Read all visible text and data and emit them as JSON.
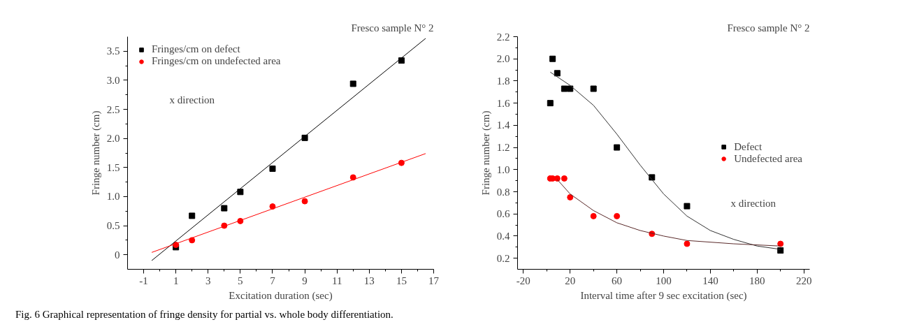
{
  "chart_data": [
    {
      "type": "scatter",
      "title": "Fresco sample N° 2",
      "xlabel": "Excitation duration (sec)",
      "ylabel": "Fringe number (cm)",
      "annotations": [
        "x direction",
        "Fig. 6 Graphical representation of fringe density for partial vs. whole body differentiation."
      ],
      "xlim": [
        -2,
        17
      ],
      "ylim": [
        -0.25,
        3.75
      ],
      "xticks": [
        -1,
        {
          "value": 0,
          "label": null
        },
        1,
        {
          "value": 2,
          "label": null
        },
        3,
        {
          "value": 4,
          "label": null
        },
        5,
        {
          "value": 6,
          "label": null
        },
        7,
        {
          "value": 8,
          "label": null
        },
        9,
        {
          "value": 10,
          "label": null
        },
        11,
        {
          "value": 12,
          "label": null
        },
        13,
        {
          "value": 14,
          "label": null
        },
        15,
        {
          "value": 16,
          "label": null
        },
        17
      ],
      "yticks": [
        0,
        {
          "value": 0.25,
          "label": null
        },
        {
          "value": 0.5,
          "label": "0.5"
        },
        {
          "value": 0.75,
          "label": null
        },
        {
          "value": 1,
          "label": "1.0"
        },
        {
          "value": 1.25,
          "label": null
        },
        1.5,
        {
          "value": 1.75,
          "label": null
        },
        {
          "value": 2,
          "label": "2.0"
        },
        {
          "value": 2.25,
          "label": null
        },
        2.5,
        {
          "value": 2.75,
          "label": null
        },
        {
          "value": 3,
          "label": "3.0"
        },
        {
          "value": 3.25,
          "label": null
        },
        3.5
      ],
      "grid": false,
      "legend": "top left",
      "series": [
        {
          "type": "scatter",
          "name": "Fringes/cm on defect",
          "color": "#000000",
          "marker": "square",
          "x": [
            1,
            2,
            4,
            5,
            7,
            9,
            12,
            15
          ],
          "values": [
            0.13,
            0.67,
            0.8,
            1.08,
            1.48,
            2.01,
            2.94,
            3.34
          ]
        },
        {
          "type": "scatter",
          "name": "Fringes/cm on undefected area",
          "color": "#ff0000",
          "marker": "circle",
          "x": [
            1,
            2,
            4,
            5,
            7,
            9,
            12,
            15
          ],
          "values": [
            0.17,
            0.25,
            0.5,
            0.58,
            0.83,
            0.92,
            1.33,
            1.58
          ]
        },
        {
          "type": "line",
          "color": "#000000",
          "x": [
            -0.5,
            16.5
          ],
          "values": [
            -0.1,
            3.72
          ]
        },
        {
          "type": "line",
          "color": "#ff0000",
          "x": [
            -0.5,
            16.5
          ],
          "values": [
            0.04,
            1.74
          ]
        }
      ]
    },
    {
      "type": "scatter",
      "title": "Fresco sample N° 2",
      "xlabel": "Interval time after 9 sec excitation (sec)",
      "ylabel": "Fringe number (cm)",
      "annotations": [
        "x direction"
      ],
      "xlim": [
        -25,
        225
      ],
      "ylim": [
        0.1,
        2.2
      ],
      "xticks": [
        -20,
        {
          "value": 0,
          "label": null
        },
        20,
        {
          "value": 40,
          "label": null
        },
        60,
        {
          "value": 80,
          "label": null
        },
        100,
        {
          "value": 120,
          "label": null
        },
        140,
        {
          "value": 160,
          "label": null
        },
        180,
        {
          "value": 200,
          "label": null
        },
        220
      ],
      "yticks": [
        {
          "value": 0.2,
          "label": "0.2"
        },
        {
          "value": 0.3,
          "label": null
        },
        {
          "value": 0.4,
          "label": "0.4"
        },
        {
          "value": 0.5,
          "label": null
        },
        {
          "value": 0.6,
          "label": "0.6"
        },
        {
          "value": 0.7,
          "label": null
        },
        {
          "value": 0.8,
          "label": "0.8"
        },
        {
          "value": 0.9,
          "label": null
        },
        {
          "value": 1.0,
          "label": "1.0"
        },
        {
          "value": 1.1,
          "label": null
        },
        {
          "value": 1.2,
          "label": "1.2"
        },
        {
          "value": 1.3,
          "label": null
        },
        {
          "value": 1.4,
          "label": "1.4"
        },
        {
          "value": 1.5,
          "label": null
        },
        {
          "value": 1.6,
          "label": "1.6"
        },
        {
          "value": 1.7,
          "label": null
        },
        {
          "value": 1.8,
          "label": "1.8"
        },
        {
          "value": 1.9,
          "label": null
        },
        {
          "value": 2.0,
          "label": "2.0"
        },
        {
          "value": 2.1,
          "label": null
        },
        {
          "value": 2.2,
          "label": "2.2"
        }
      ],
      "grid": false,
      "legend": "right",
      "series": [
        {
          "type": "scatter",
          "name": "Defect",
          "color": "#000000",
          "marker": "square",
          "x": [
            3,
            5,
            9,
            15,
            20,
            40,
            60,
            90,
            120,
            200
          ],
          "values": [
            1.6,
            2.0,
            1.87,
            1.73,
            1.73,
            1.73,
            1.2,
            0.93,
            0.67,
            0.27
          ]
        },
        {
          "type": "scatter",
          "name": "Undefected area",
          "color": "#ff0000",
          "marker": "circle",
          "x": [
            3,
            5,
            9,
            15,
            20,
            40,
            60,
            90,
            120,
            200
          ],
          "values": [
            0.92,
            0.92,
            0.92,
            0.92,
            0.75,
            0.58,
            0.58,
            0.42,
            0.33,
            0.33
          ]
        },
        {
          "type": "line",
          "color": "#333333",
          "x": [
            3,
            20,
            40,
            60,
            80,
            100,
            120,
            140,
            160,
            180,
            200
          ],
          "values": [
            1.88,
            1.76,
            1.58,
            1.32,
            1.04,
            0.78,
            0.58,
            0.45,
            0.37,
            0.31,
            0.28
          ]
        },
        {
          "type": "line",
          "color": "#5a2a2a",
          "x": [
            9,
            20,
            40,
            60,
            80,
            100,
            120,
            160,
            200
          ],
          "values": [
            0.91,
            0.78,
            0.63,
            0.52,
            0.45,
            0.4,
            0.36,
            0.33,
            0.31
          ]
        }
      ]
    }
  ]
}
